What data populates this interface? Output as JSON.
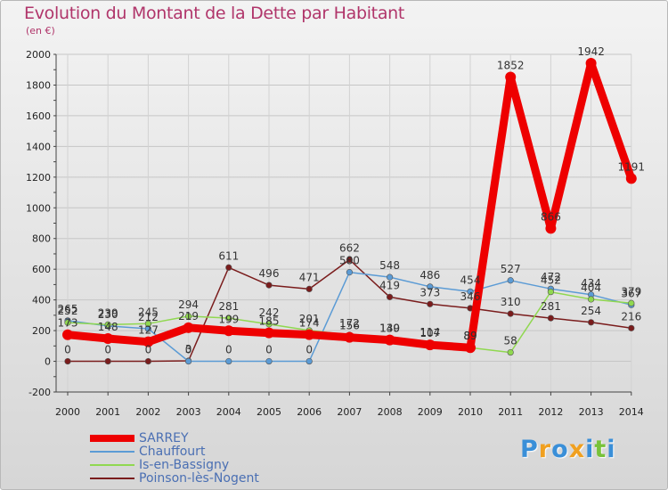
{
  "title": "Evolution du Montant de la Dette par Habitant",
  "subtitle": "(en €)",
  "logo": {
    "letters": [
      "P",
      "r",
      "o",
      "x",
      "i",
      "t",
      "i"
    ],
    "colors": [
      "#3a8fd8",
      "#f0a020",
      "#3a8fd8",
      "#f0a020",
      "#3a8fd8",
      "#78c23a",
      "#3a8fd8"
    ]
  },
  "chart_data": {
    "type": "line",
    "x": [
      "2000",
      "2001",
      "2002",
      "2003",
      "2004",
      "2005",
      "2006",
      "2007",
      "2008",
      "2009",
      "2010",
      "2011",
      "2012",
      "2013",
      "2014"
    ],
    "ylim": [
      -200,
      2000
    ],
    "yticks": [
      -200,
      0,
      200,
      400,
      600,
      800,
      1000,
      1200,
      1400,
      1600,
      1800,
      2000
    ],
    "grid": true,
    "legend_position": "bottom-left",
    "series": [
      {
        "name": "SARREY",
        "color": "#ee0000",
        "values": [
          173,
          148,
          127,
          219,
          199,
          185,
          174,
          156,
          139,
          107,
          89,
          1852,
          866,
          1942,
          1191
        ],
        "labels": [
          "173",
          "148",
          "127",
          "219",
          "199",
          "185",
          "174",
          "156",
          "139",
          "107",
          "89",
          "1852",
          "866",
          "1942",
          "1191"
        ]
      },
      {
        "name": "Chauffourt",
        "color": "#5b9bd5",
        "values": [
          265,
          230,
          212,
          0,
          0,
          0,
          0,
          580,
          548,
          486,
          454,
          527,
          472,
          434,
          367
        ],
        "labels": [
          "265",
          "230",
          "212",
          "0",
          "0",
          "0",
          "0",
          "580",
          "548",
          "486",
          "454",
          "527",
          "472",
          "434",
          "367"
        ]
      },
      {
        "name": "Is-en-Bassigny",
        "color": "#90d850",
        "values": [
          252,
          239,
          245,
          294,
          281,
          242,
          201,
          172,
          140,
          114,
          89,
          58,
          452,
          404,
          379
        ],
        "labels": [
          "252",
          "239",
          "245",
          "294",
          "281",
          "242",
          "201",
          "172",
          "140",
          "114",
          "89",
          "58",
          "452",
          "404",
          "379"
        ]
      },
      {
        "name": "Poinson-lès-Nogent",
        "color": "#7a1c1c",
        "values": [
          0,
          0,
          0,
          3,
          611,
          496,
          471,
          662,
          419,
          373,
          346,
          310,
          281,
          254,
          216
        ],
        "labels": [
          "0",
          "0",
          "0",
          "3",
          "611",
          "496",
          "471",
          "662",
          "419",
          "373",
          "346",
          "310",
          "281",
          "254",
          "216"
        ]
      }
    ]
  }
}
